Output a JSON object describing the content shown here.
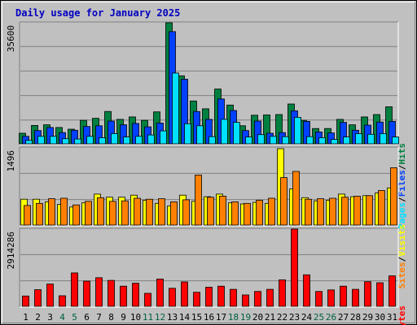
{
  "chart_data": {
    "type": "bar",
    "title": "Daily usage for January 2025",
    "categories": [
      "1",
      "2",
      "3",
      "4",
      "5",
      "6",
      "7",
      "8",
      "9",
      "10",
      "11",
      "12",
      "13",
      "14",
      "15",
      "16",
      "17",
      "18",
      "19",
      "20",
      "21",
      "22",
      "23",
      "24",
      "25",
      "26",
      "27",
      "28",
      "29",
      "30",
      "31"
    ],
    "weekend_days": [
      "4",
      "5",
      "11",
      "12",
      "18",
      "19",
      "25",
      "26"
    ],
    "colors": {
      "hits": "#008040",
      "files": "#0040ff",
      "pages": "#00e0ff",
      "visits": "#ffff00",
      "sites": "#ff8000",
      "kbytes": "#ff0000",
      "title": "#0000c0",
      "weekend": "#006040",
      "weekday": "#000000"
    },
    "panels": [
      {
        "id": "hits-panel",
        "ymax_label": "35600",
        "ymax": 35600,
        "side_labels": [
          {
            "text": "Pages",
            "color": "#00e0ff"
          },
          {
            "text": "/",
            "color": "#000000"
          },
          {
            "text": "Files",
            "color": "#0040ff"
          },
          {
            "text": "/",
            "color": "#000000"
          },
          {
            "text": "Hits",
            "color": "#008040"
          }
        ],
        "series": [
          {
            "name": "Hits",
            "color": "#008040",
            "values": [
              3100,
              5400,
              5600,
              4800,
              4300,
              6900,
              7500,
              9500,
              7200,
              7900,
              6900,
              9400,
              35600,
              20000,
              12600,
              10300,
              16100,
              11400,
              5300,
              8400,
              8500,
              8600,
              11700,
              6900,
              4500,
              4500,
              7200,
              5600,
              7900,
              8600,
              10900
            ]
          },
          {
            "name": "Files",
            "color": "#0040ff",
            "values": [
              2200,
              3900,
              4800,
              3300,
              4000,
              5100,
              5300,
              6700,
              5600,
              6000,
              5000,
              6100,
              33000,
              19000,
              9500,
              7200,
              13200,
              9800,
              3900,
              6700,
              3100,
              3300,
              9700,
              6600,
              3500,
              3200,
              6300,
              4000,
              5500,
              6400,
              6600
            ]
          },
          {
            "name": "Pages",
            "color": "#00e0ff",
            "values": [
              1000,
              2200,
              2200,
              1500,
              1400,
              2200,
              1800,
              3000,
              2000,
              2200,
              2600,
              3800,
              20800,
              5900,
              5300,
              2100,
              7200,
              6300,
              2000,
              2700,
              2200,
              2100,
              7800,
              2100,
              1800,
              1300,
              2000,
              3000,
              2800,
              3000,
              2000
            ]
          }
        ]
      },
      {
        "id": "visits-panel",
        "ymax_label": "1496",
        "ymax": 1496,
        "side_labels": [
          {
            "text": "Sites",
            "color": "#ff8000"
          },
          {
            "text": "/",
            "color": "#000000"
          },
          {
            "text": "Visits",
            "color": "#ffff00"
          }
        ],
        "series": [
          {
            "name": "Visits",
            "color": "#ffff00",
            "values": [
              500,
              500,
              450,
              400,
              350,
              430,
              600,
              540,
              540,
              580,
              480,
              420,
              370,
              580,
              460,
              550,
              600,
              430,
              410,
              440,
              420,
              1480,
              700,
              530,
              470,
              480,
              600,
              550,
              570,
              620,
              720
            ]
          },
          {
            "name": "Sites",
            "color": "#ff8000",
            "values": [
              380,
              420,
              510,
              520,
              390,
              460,
              530,
              460,
              470,
              520,
              500,
              510,
              450,
              490,
              970,
              540,
              560,
              450,
              420,
              480,
              520,
              920,
              1040,
              500,
              510,
              520,
              540,
              560,
              570,
              670,
              1110
            ]
          }
        ]
      },
      {
        "id": "kbytes-panel",
        "ymax_label": "2914286",
        "ymax": 2914286,
        "side_labels": [
          {
            "text": "KBytes",
            "color": "#ff0000"
          }
        ],
        "series": [
          {
            "name": "KBytes",
            "color": "#ff0000",
            "values": [
              390000,
              630000,
              840000,
              400000,
              1260000,
              950000,
              1080000,
              980000,
              760000,
              870000,
              490000,
              1030000,
              680000,
              920000,
              530000,
              720000,
              760000,
              640000,
              430000,
              560000,
              640000,
              1000000,
              2914286,
              1190000,
              560000,
              620000,
              760000,
              640000,
              930000,
              890000,
              1150000
            ]
          }
        ]
      }
    ]
  }
}
